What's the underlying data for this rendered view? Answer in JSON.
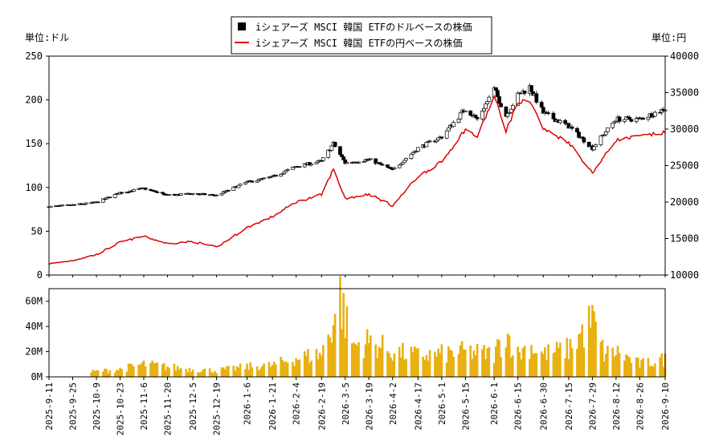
{
  "chart_data": [
    {
      "type": "candlestick",
      "legend": {
        "placement": "top-center",
        "entries": [
          {
            "label": "iシェアーズ MSCI 韓国 ETFのドルベースの株価",
            "color": "#000000",
            "marker": "square"
          },
          {
            "label": "iシェアーズ MSCI 韓国 ETFの円ベースの株価",
            "color": "#dd0000",
            "marker": "line"
          }
        ]
      },
      "y_left": {
        "unit_label": "単位:ドル",
        "range": [
          0,
          250
        ],
        "ticks": [
          "0",
          "50",
          "100",
          "150",
          "200",
          "250"
        ]
      },
      "y_right": {
        "unit_label": "単位:円",
        "range": [
          10000,
          40000
        ],
        "ticks": [
          "10000",
          "15000",
          "20000",
          "25000",
          "30000",
          "35000",
          "40000"
        ]
      },
      "grid": false,
      "usd_anchor_points": [
        [
          "2025-09-11",
          78
        ],
        [
          "2025-09-25",
          80
        ],
        [
          "2025-10-09",
          83
        ],
        [
          "2025-10-23",
          94
        ],
        [
          "2025-11-06",
          99
        ],
        [
          "2025-11-20",
          91
        ],
        [
          "2025-12-05",
          93
        ],
        [
          "2025-12-19",
          91
        ],
        [
          "2026-01-06",
          106
        ],
        [
          "2026-01-21",
          112
        ],
        [
          "2026-02-04",
          124
        ],
        [
          "2026-02-19",
          130
        ],
        [
          "2026-02-26",
          150
        ],
        [
          "2026-03-05",
          128
        ],
        [
          "2026-03-19",
          132
        ],
        [
          "2026-04-02",
          120
        ],
        [
          "2026-04-17",
          145
        ],
        [
          "2026-05-01",
          158
        ],
        [
          "2026-05-15",
          190
        ],
        [
          "2026-05-22",
          178
        ],
        [
          "2026-06-01",
          212
        ],
        [
          "2026-06-08",
          182
        ],
        [
          "2026-06-15",
          205
        ],
        [
          "2026-06-22",
          215
        ],
        [
          "2026-06-30",
          185
        ],
        [
          "2026-07-15",
          170
        ],
        [
          "2026-07-29",
          145
        ],
        [
          "2026-08-12",
          178
        ],
        [
          "2026-08-26",
          178
        ],
        [
          "2026-09-10",
          190
        ]
      ],
      "jpy_anchor_points": [
        [
          "2025-09-11",
          11500
        ],
        [
          "2025-09-25",
          12000
        ],
        [
          "2025-10-09",
          12800
        ],
        [
          "2025-10-23",
          14500
        ],
        [
          "2025-11-06",
          15300
        ],
        [
          "2025-11-20",
          14300
        ],
        [
          "2025-12-05",
          14600
        ],
        [
          "2025-12-19",
          13800
        ],
        [
          "2026-01-06",
          16500
        ],
        [
          "2026-01-21",
          18000
        ],
        [
          "2026-02-04",
          20000
        ],
        [
          "2026-02-19",
          21000
        ],
        [
          "2026-02-26",
          24500
        ],
        [
          "2026-03-05",
          20500
        ],
        [
          "2026-03-19",
          21100
        ],
        [
          "2026-04-02",
          19500
        ],
        [
          "2026-04-17",
          23500
        ],
        [
          "2026-05-01",
          25500
        ],
        [
          "2026-05-15",
          30000
        ],
        [
          "2026-05-22",
          28900
        ],
        [
          "2026-06-01",
          34500
        ],
        [
          "2026-06-08",
          29800
        ],
        [
          "2026-06-15",
          33600
        ],
        [
          "2026-06-22",
          34000
        ],
        [
          "2026-06-30",
          30000
        ],
        [
          "2026-07-15",
          28200
        ],
        [
          "2026-07-29",
          24000
        ],
        [
          "2026-08-12",
          28500
        ],
        [
          "2026-08-26",
          29000
        ],
        [
          "2026-09-10",
          29500
        ]
      ]
    },
    {
      "type": "bar",
      "y": {
        "range": [
          0,
          70000000
        ],
        "ticks": [
          "0M",
          "20M",
          "40M",
          "60M"
        ]
      },
      "x_tick_labels": [
        "2025-9-11",
        "2025-9-25",
        "2025-10-9",
        "2025-10-23",
        "2025-11-6",
        "2025-11-20",
        "2025-12-5",
        "2025-12-19",
        "2026-1-6",
        "2026-1-21",
        "2026-2-4",
        "2026-2-19",
        "2026-3-5",
        "2026-3-19",
        "2026-4-2",
        "2026-4-17",
        "2026-5-1",
        "2026-5-15",
        "2026-6-1",
        "2026-6-15",
        "2026-6-30",
        "2026-7-15",
        "2026-7-29",
        "2026-8-12",
        "2026-8-26",
        "2026-9-10"
      ],
      "volume_start_date": "2025-10-06",
      "volume_anchor_points": [
        [
          "2025-10-06",
          4000000
        ],
        [
          "2025-10-23",
          6000000
        ],
        [
          "2025-11-06",
          10000000
        ],
        [
          "2025-11-20",
          8000000
        ],
        [
          "2025-12-05",
          6000000
        ],
        [
          "2025-12-19",
          5000000
        ],
        [
          "2026-01-06",
          8000000
        ],
        [
          "2026-01-21",
          9000000
        ],
        [
          "2026-02-04",
          15000000
        ],
        [
          "2026-02-19",
          18000000
        ],
        [
          "2026-02-26",
          45000000
        ],
        [
          "2026-03-02",
          65000000
        ],
        [
          "2026-03-05",
          45000000
        ],
        [
          "2026-03-10",
          25000000
        ],
        [
          "2026-03-19",
          28000000
        ],
        [
          "2026-04-02",
          20000000
        ],
        [
          "2026-04-17",
          17000000
        ],
        [
          "2026-05-01",
          18000000
        ],
        [
          "2026-05-15",
          20000000
        ],
        [
          "2026-06-01",
          18000000
        ],
        [
          "2026-06-08",
          35000000
        ],
        [
          "2026-06-15",
          18000000
        ],
        [
          "2026-06-22",
          25000000
        ],
        [
          "2026-06-30",
          18000000
        ],
        [
          "2026-07-15",
          22000000
        ],
        [
          "2026-07-29",
          45000000
        ],
        [
          "2026-08-05",
          18000000
        ],
        [
          "2026-08-12",
          20000000
        ],
        [
          "2026-08-26",
          10000000
        ],
        [
          "2026-09-10",
          14000000
        ]
      ]
    }
  ]
}
